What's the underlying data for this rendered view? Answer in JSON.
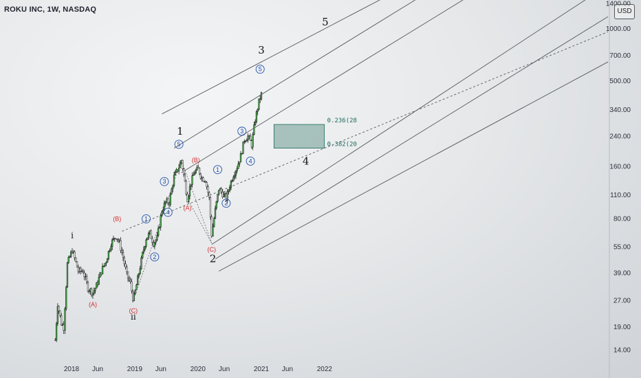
{
  "header": {
    "symbol_title": "ROKU INC, 1W, NASDAQ",
    "currency": "USD"
  },
  "chart_data": {
    "type": "candlestick",
    "price_scale": "log",
    "y_ticks": [
      "1400.00",
      "1000.00",
      "700.00",
      "500.00",
      "340.00",
      "240.00",
      "160.00",
      "110.00",
      "80.00",
      "55.00",
      "39.00",
      "27.00",
      "19.00",
      "14.00"
    ],
    "y_tick_values": [
      1400,
      1000,
      700,
      500,
      340,
      240,
      160,
      110,
      80,
      55,
      39,
      27,
      19,
      14
    ],
    "x_ticks": [
      {
        "label": "2018",
        "date": "2018-01-01"
      },
      {
        "label": "Jun",
        "date": "2018-06-01"
      },
      {
        "label": "2019",
        "date": "2019-01-01"
      },
      {
        "label": "Jun",
        "date": "2019-06-01"
      },
      {
        "label": "2020",
        "date": "2020-01-01"
      },
      {
        "label": "Jun",
        "date": "2020-06-01"
      },
      {
        "label": "2021",
        "date": "2021-01-01"
      },
      {
        "label": "Jun",
        "date": "2021-06-01"
      },
      {
        "label": "2022",
        "date": "2022-01-01"
      }
    ],
    "price_path": [
      [
        "2017-09-29",
        16
      ],
      [
        "2017-10-13",
        26
      ],
      [
        "2017-11-03",
        20
      ],
      [
        "2017-11-17",
        19
      ],
      [
        "2017-12-08",
        44
      ],
      [
        "2018-01-05",
        53
      ],
      [
        "2018-02-09",
        40
      ],
      [
        "2018-03-09",
        40
      ],
      [
        "2018-04-06",
        32
      ],
      [
        "2018-05-04",
        30
      ],
      [
        "2018-05-25",
        33
      ],
      [
        "2018-06-22",
        40
      ],
      [
        "2018-07-20",
        46
      ],
      [
        "2018-08-17",
        58
      ],
      [
        "2018-09-14",
        64
      ],
      [
        "2018-10-05",
        58
      ],
      [
        "2018-10-26",
        48
      ],
      [
        "2018-11-16",
        38
      ],
      [
        "2018-12-07",
        34
      ],
      [
        "2018-12-24",
        27
      ],
      [
        "2019-01-18",
        36
      ],
      [
        "2019-02-15",
        50
      ],
      [
        "2019-03-08",
        62
      ],
      [
        "2019-03-29",
        66
      ],
      [
        "2019-04-19",
        58
      ],
      [
        "2019-05-10",
        62
      ],
      [
        "2019-06-07",
        90
      ],
      [
        "2019-06-28",
        100
      ],
      [
        "2019-07-19",
        100
      ],
      [
        "2019-08-16",
        140
      ],
      [
        "2019-09-13",
        160
      ],
      [
        "2019-09-27",
        175
      ],
      [
        "2019-10-18",
        130
      ],
      [
        "2019-11-01",
        105
      ],
      [
        "2019-11-22",
        130
      ],
      [
        "2019-12-13",
        150
      ],
      [
        "2020-01-03",
        155
      ],
      [
        "2020-01-24",
        138
      ],
      [
        "2020-02-14",
        135
      ],
      [
        "2020-03-06",
        105
      ],
      [
        "2020-03-20",
        65
      ],
      [
        "2020-04-10",
        90
      ],
      [
        "2020-05-01",
        120
      ],
      [
        "2020-05-22",
        112
      ],
      [
        "2020-06-12",
        105
      ],
      [
        "2020-07-03",
        125
      ],
      [
        "2020-07-24",
        145
      ],
      [
        "2020-08-14",
        160
      ],
      [
        "2020-09-04",
        185
      ],
      [
        "2020-09-25",
        230
      ],
      [
        "2020-10-16",
        240
      ],
      [
        "2020-11-06",
        215
      ],
      [
        "2020-11-27",
        300
      ],
      [
        "2020-12-18",
        380
      ],
      [
        "2021-01-01",
        420
      ]
    ],
    "channel_lines": [
      {
        "p1": [
          "2018-10-20",
          68
        ],
        "p2": [
          "2021-12-31",
          205
        ]
      },
      {
        "p1": [
          "2019-06-07",
          323
        ],
        "p2": [
          "2021-12-31",
          1000
        ]
      },
      {
        "p1": [
          "2019-08-16",
          205
        ],
        "p2": [
          "2021-12-31",
          700
        ]
      },
      {
        "p1": [
          "2019-09-27",
          148
        ],
        "p2": [
          "2021-12-31",
          475
        ]
      },
      {
        "p1": [
          "2020-03-20",
          57
        ],
        "p2": [
          "2021-12-31",
          152
        ]
      },
      {
        "p1": [
          "2020-04-10",
          47
        ],
        "p2": [
          "2021-12-31",
          115
        ]
      },
      {
        "p1": [
          "2020-05-01",
          40
        ],
        "p2": [
          "2021-12-31",
          85
        ]
      }
    ],
    "fib_zone": {
      "start": "2021-03-15",
      "end": "2021-12-31",
      "levels": [
        {
          "label": "0.236(28",
          "price": 281
        },
        {
          "label": "0.382(20",
          "price": 205
        }
      ]
    },
    "wave_labels": {
      "primary": [
        {
          "text": "1",
          "date": "2019-09-20",
          "price": 245
        },
        {
          "text": "2",
          "date": "2020-03-27",
          "price": 45
        },
        {
          "text": "3",
          "date": "2021-01-01",
          "price": 720
        },
        {
          "text": "4",
          "date": "2021-09-15",
          "price": 165
        },
        {
          "text": "5",
          "date": "2022-01-05",
          "price": 1050
        }
      ],
      "minor": [
        {
          "text": "i",
          "date": "2018-01-05",
          "price": 62
        },
        {
          "text": "ii",
          "date": "2018-12-24",
          "price": 21
        }
      ],
      "corrective": [
        {
          "text": "(A)",
          "date": "2018-05-04",
          "price": 25
        },
        {
          "text": "(B)",
          "date": "2018-09-21",
          "price": 78
        },
        {
          "text": "(C)",
          "date": "2018-12-24",
          "price": 23
        },
        {
          "text": "(A)",
          "date": "2019-11-01",
          "price": 90
        },
        {
          "text": "(B)",
          "date": "2019-12-20",
          "price": 170
        },
        {
          "text": "(C)",
          "date": "2020-03-20",
          "price": 52
        }
      ],
      "impulse": [
        {
          "text": "1",
          "date": "2019-03-08",
          "price": 78
        },
        {
          "text": "2",
          "date": "2019-04-26",
          "price": 47
        },
        {
          "text": "3",
          "date": "2019-06-21",
          "price": 128
        },
        {
          "text": "4",
          "date": "2019-07-12",
          "price": 85
        },
        {
          "text": "5",
          "date": "2019-09-13",
          "price": 210
        },
        {
          "text": "1",
          "date": "2020-04-24",
          "price": 150
        },
        {
          "text": "2",
          "date": "2020-06-12",
          "price": 96
        },
        {
          "text": "3",
          "date": "2020-09-11",
          "price": 250
        },
        {
          "text": "4",
          "date": "2020-10-30",
          "price": 168
        },
        {
          "text": "5",
          "date": "2020-12-25",
          "price": 570
        }
      ]
    }
  }
}
